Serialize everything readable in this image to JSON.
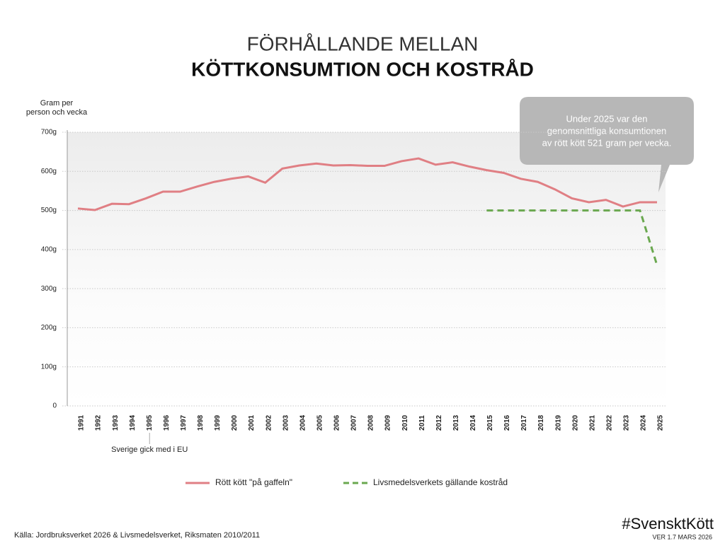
{
  "chart_data": {
    "type": "line",
    "title": "FÖRHÅLLANDE MELLAN",
    "subtitle": "KÖTTKONSUMTION OCH KOSTRÅD",
    "y_label": [
      "Gram per",
      "person och vecka"
    ],
    "categories": [
      "1991",
      "1992",
      "1993",
      "1994",
      "1995",
      "1996",
      "1997",
      "1998",
      "1999",
      "2000",
      "2001",
      "2002",
      "2003",
      "2004",
      "2005",
      "2006",
      "2007",
      "2008",
      "2009",
      "2010",
      "2011",
      "2012",
      "2013",
      "2014",
      "2015",
      "2016",
      "2017",
      "2018",
      "2019",
      "2020",
      "2021",
      "2022",
      "2023",
      "2024",
      "2025"
    ],
    "series": [
      {
        "name": "Rött kött \"på gaffeln\"",
        "color": "#e07f84",
        "dash": false,
        "values": [
          505,
          501,
          517,
          516,
          531,
          548,
          548,
          561,
          573,
          581,
          587,
          571,
          607,
          615,
          620,
          615,
          616,
          614,
          614,
          626,
          633,
          617,
          623,
          612,
          603,
          596,
          581,
          573,
          554,
          531,
          521,
          527,
          510,
          521,
          521
        ]
      },
      {
        "name": "Livsmedelsverkets gällande kostråd",
        "color": "#6aa84f",
        "dash": true,
        "values": [
          null,
          null,
          null,
          null,
          null,
          null,
          null,
          null,
          null,
          null,
          null,
          null,
          null,
          null,
          null,
          null,
          null,
          null,
          null,
          null,
          null,
          null,
          null,
          null,
          500,
          500,
          500,
          500,
          500,
          500,
          500,
          500,
          500,
          500,
          360
        ]
      }
    ],
    "ylim": [
      0,
      700
    ],
    "yticks": [
      {
        "value": 0,
        "label": "0"
      },
      {
        "value": 100,
        "label": "100g"
      },
      {
        "value": 200,
        "label": "200g"
      },
      {
        "value": 300,
        "label": "300g"
      },
      {
        "value": 400,
        "label": "400g"
      },
      {
        "value": 500,
        "label": "500g"
      },
      {
        "value": 600,
        "label": "600g"
      },
      {
        "value": 700,
        "label": "700g"
      }
    ],
    "grid": true,
    "annotation": "Sverige gick med i EU",
    "callout": [
      "Under 2025 var den",
      "genomsnittliga konsumtionen",
      "av rött kött 521 gram per vecka."
    ],
    "source": "Källa: Jordbruksverket 2026 & Livsmedelsverket, Riksmaten 2010/2011",
    "hashtag": "#SvensktKött",
    "version": "VER 1.7 MARS 2026"
  }
}
